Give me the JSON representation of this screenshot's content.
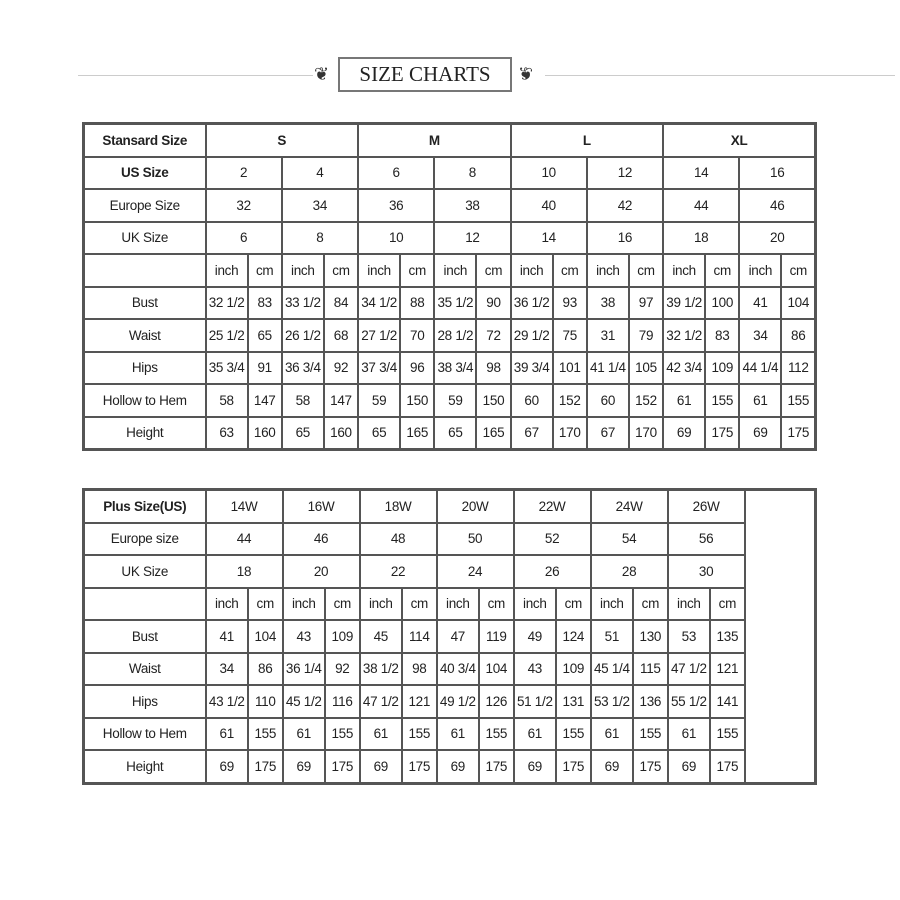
{
  "title": "SIZE CHARTS",
  "standard": {
    "header_label": "Stansard Size",
    "size_groups": [
      "S",
      "M",
      "L",
      "XL"
    ],
    "size_rows": [
      {
        "label": "US Size",
        "values": [
          "2",
          "4",
          "6",
          "8",
          "10",
          "12",
          "14",
          "16"
        ]
      },
      {
        "label": "Europe Size",
        "values": [
          "32",
          "34",
          "36",
          "38",
          "40",
          "42",
          "44",
          "46"
        ]
      },
      {
        "label": "UK Size",
        "values": [
          "6",
          "8",
          "10",
          "12",
          "14",
          "16",
          "18",
          "20"
        ]
      }
    ],
    "units": [
      "inch",
      "cm"
    ],
    "measurements": [
      {
        "label": "Bust",
        "values": [
          "32 1/2",
          "83",
          "33 1/2",
          "84",
          "34 1/2",
          "88",
          "35 1/2",
          "90",
          "36 1/2",
          "93",
          "38",
          "97",
          "39 1/2",
          "100",
          "41",
          "104"
        ]
      },
      {
        "label": "Waist",
        "values": [
          "25 1/2",
          "65",
          "26 1/2",
          "68",
          "27 1/2",
          "70",
          "28 1/2",
          "72",
          "29 1/2",
          "75",
          "31",
          "79",
          "32 1/2",
          "83",
          "34",
          "86"
        ]
      },
      {
        "label": "Hips",
        "values": [
          "35 3/4",
          "91",
          "36 3/4",
          "92",
          "37 3/4",
          "96",
          "38 3/4",
          "98",
          "39 3/4",
          "101",
          "41 1/4",
          "105",
          "42 3/4",
          "109",
          "44 1/4",
          "112"
        ]
      },
      {
        "label": "Hollow to Hem",
        "values": [
          "58",
          "147",
          "58",
          "147",
          "59",
          "150",
          "59",
          "150",
          "60",
          "152",
          "60",
          "152",
          "61",
          "155",
          "61",
          "155"
        ]
      },
      {
        "label": "Height",
        "values": [
          "63",
          "160",
          "65",
          "160",
          "65",
          "165",
          "65",
          "165",
          "67",
          "170",
          "67",
          "170",
          "69",
          "175",
          "69",
          "175"
        ]
      }
    ]
  },
  "plus": {
    "header_label": "Plus Size(US)",
    "sizes": [
      "14W",
      "16W",
      "18W",
      "20W",
      "22W",
      "24W",
      "26W"
    ],
    "size_rows": [
      {
        "label": "Europe size",
        "values": [
          "44",
          "46",
          "48",
          "50",
          "52",
          "54",
          "56"
        ]
      },
      {
        "label": "UK Size",
        "values": [
          "18",
          "20",
          "22",
          "24",
          "26",
          "28",
          "30"
        ]
      }
    ],
    "units": [
      "inch",
      "cm"
    ],
    "measurements": [
      {
        "label": "Bust",
        "values": [
          "41",
          "104",
          "43",
          "109",
          "45",
          "114",
          "47",
          "119",
          "49",
          "124",
          "51",
          "130",
          "53",
          "135"
        ]
      },
      {
        "label": "Waist",
        "values": [
          "34",
          "86",
          "36 1/4",
          "92",
          "38 1/2",
          "98",
          "40 3/4",
          "104",
          "43",
          "109",
          "45 1/4",
          "115",
          "47 1/2",
          "121"
        ]
      },
      {
        "label": "Hips",
        "values": [
          "43 1/2",
          "110",
          "45 1/2",
          "116",
          "47 1/2",
          "121",
          "49 1/2",
          "126",
          "51 1/2",
          "131",
          "53 1/2",
          "136",
          "55 1/2",
          "141"
        ]
      },
      {
        "label": "Hollow to Hem",
        "values": [
          "61",
          "155",
          "61",
          "155",
          "61",
          "155",
          "61",
          "155",
          "61",
          "155",
          "61",
          "155",
          "61",
          "155"
        ]
      },
      {
        "label": "Height",
        "values": [
          "69",
          "175",
          "69",
          "175",
          "69",
          "175",
          "69",
          "175",
          "69",
          "175",
          "69",
          "175",
          "69",
          "175"
        ]
      }
    ]
  }
}
